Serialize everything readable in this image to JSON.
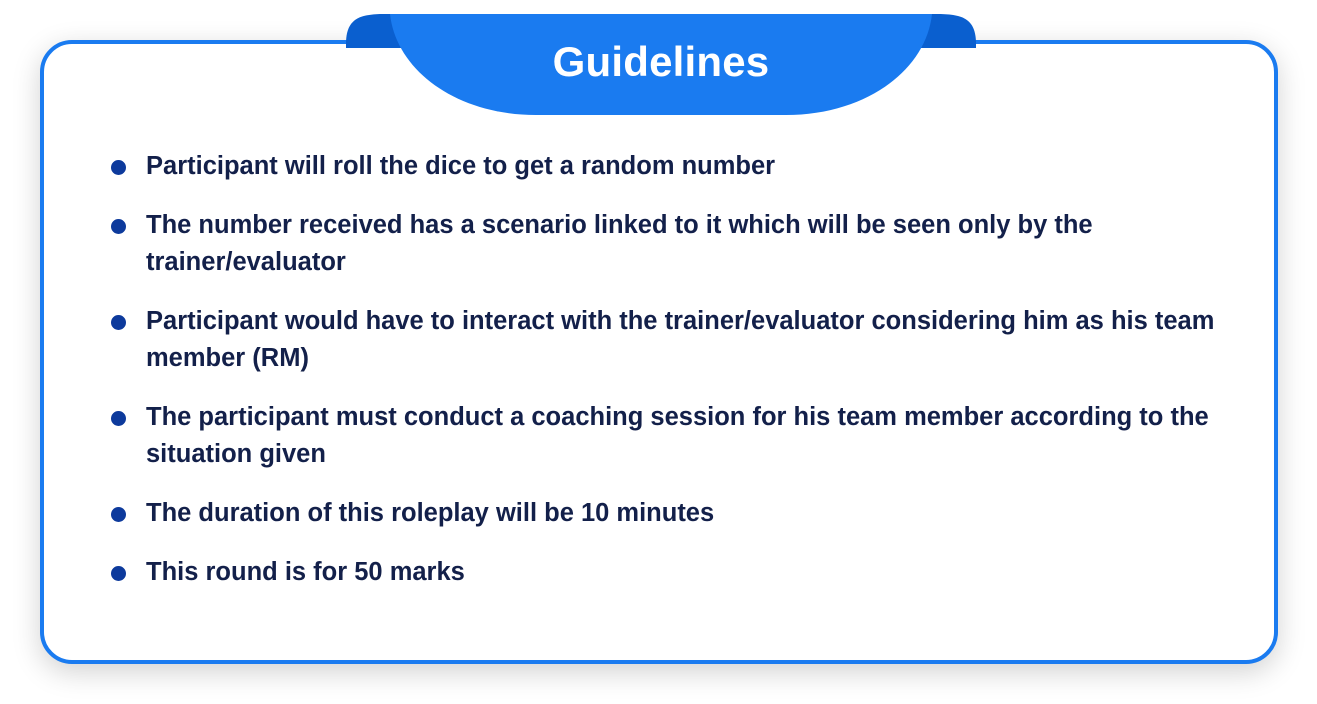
{
  "header": {
    "title": "Guidelines"
  },
  "guidelines": [
    "Participant will roll the dice to get a random number",
    "The number received has a scenario linked to it which will be seen only by the trainer/evaluator",
    "Participant would have to interact with the trainer/evaluator considering him as his team member (RM)",
    "The participant must conduct a coaching session for his team member according to the situation given",
    "The duration of this roleplay will be 10 minutes",
    "This round is for 50 marks"
  ],
  "colors": {
    "accent": "#1a7bf0",
    "accent_dark": "#0a5fcf",
    "bullet": "#0d3a9c",
    "text": "#13204a"
  }
}
